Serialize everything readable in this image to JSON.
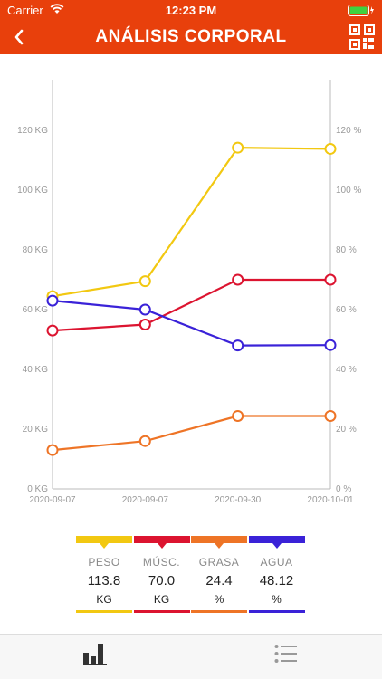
{
  "status": {
    "carrier": "Carrier",
    "time": "12:23 PM"
  },
  "header": {
    "title": "ANÁLISIS CORPORAL"
  },
  "colors": {
    "header": "#e8400c",
    "peso": "#f2c811",
    "musc": "#dc1430",
    "grasa": "#ee7426",
    "agua": "#3a22d8"
  },
  "legend": [
    {
      "label": "PESO",
      "value": "113.8",
      "unit": "KG",
      "color": "#f2c811"
    },
    {
      "label": "MÚSC.",
      "value": "70.0",
      "unit": "KG",
      "color": "#dc1430"
    },
    {
      "label": "GRASA",
      "value": "24.4",
      "unit": "%",
      "color": "#ee7426"
    },
    {
      "label": "AGUA",
      "value": "48.12",
      "unit": "%",
      "color": "#3a22d8"
    }
  ],
  "tabs": [
    {
      "icon": "bar-chart-icon"
    },
    {
      "icon": "list-icon"
    }
  ],
  "chart_data": {
    "type": "line",
    "x": [
      "2020-09-07",
      "2020-09-07",
      "2020-09-30",
      "2020-10-01"
    ],
    "left_axis_ticks": [
      "0 KG",
      "20 KG",
      "40 KG",
      "60 KG",
      "80 KG",
      "100 KG",
      "120 KG"
    ],
    "right_axis_ticks": [
      "0 %",
      "20 %",
      "40 %",
      "60 %",
      "80 %",
      "100 %",
      "120 %"
    ],
    "ylim": [
      0,
      130
    ],
    "series": [
      {
        "name": "PESO",
        "axis": "left",
        "color": "#f2c811",
        "values": [
          64.5,
          69.5,
          114.2,
          113.8
        ]
      },
      {
        "name": "MÚSC.",
        "axis": "left",
        "color": "#dc1430",
        "values": [
          53.0,
          55.0,
          70.0,
          70.0
        ]
      },
      {
        "name": "GRASA",
        "axis": "right",
        "color": "#ee7426",
        "values": [
          13.0,
          16.0,
          24.4,
          24.4
        ]
      },
      {
        "name": "AGUA",
        "axis": "right",
        "color": "#3a22d8",
        "values": [
          63.0,
          60.0,
          48.0,
          48.12
        ]
      }
    ]
  }
}
